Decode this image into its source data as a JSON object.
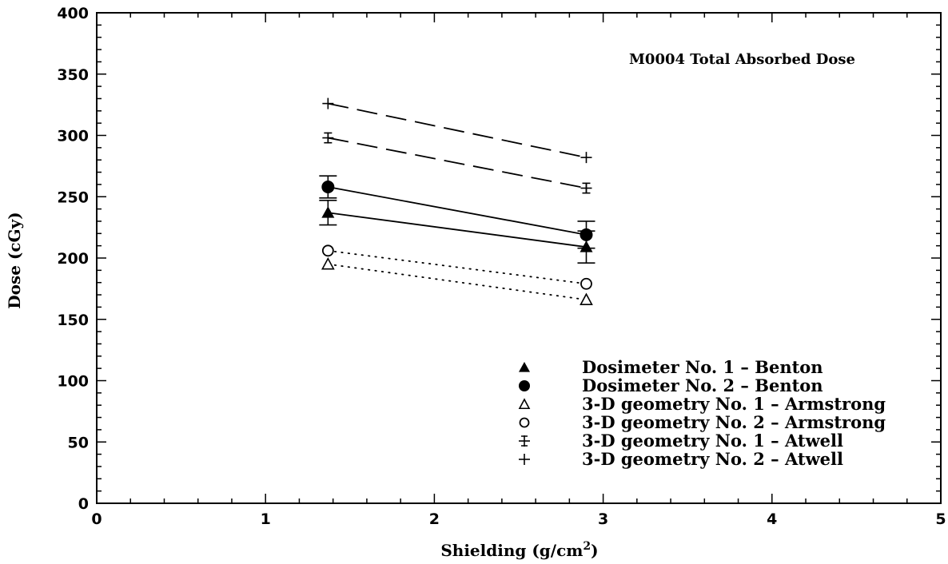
{
  "chart_data": {
    "type": "line",
    "title": "",
    "annotation": "M0004 Total Absorbed Dose",
    "xlabel_main": "Shielding (g/cm",
    "xlabel_sup": "2",
    "xlabel_end": ")",
    "ylabel": "Dose (cGy)",
    "xlim": [
      0,
      5
    ],
    "ylim": [
      0,
      400
    ],
    "xticks": [
      0,
      1,
      2,
      3,
      4,
      5
    ],
    "yticks": [
      0,
      50,
      100,
      150,
      200,
      250,
      300,
      350,
      400
    ],
    "grid": false,
    "legend_position": "lower-right",
    "series": [
      {
        "name": "Dosimeter No. 1 - Benton",
        "marker": "filled-triangle",
        "line": "solid",
        "x": [
          1.37,
          2.9
        ],
        "y": [
          237,
          209
        ],
        "err": [
          10,
          13
        ]
      },
      {
        "name": "Dosimeter No. 2 - Benton",
        "marker": "filled-circle",
        "line": "solid",
        "x": [
          1.37,
          2.9
        ],
        "y": [
          258,
          219
        ],
        "err": [
          9,
          11
        ]
      },
      {
        "name": "3-D geometry No. 1 - Armstrong",
        "marker": "open-triangle",
        "line": "dotted",
        "x": [
          1.37,
          2.9
        ],
        "y": [
          195,
          166
        ],
        "err": [
          0,
          0
        ]
      },
      {
        "name": "3-D geometry No. 2 - Armstrong",
        "marker": "open-circle",
        "line": "dotted",
        "x": [
          1.37,
          2.9
        ],
        "y": [
          206,
          179
        ],
        "err": [
          0,
          0
        ]
      },
      {
        "name": "3-D geometry No. 1 - Atwell",
        "marker": "plus-errbar",
        "line": "dashed",
        "x": [
          1.37,
          2.9
        ],
        "y": [
          298,
          257
        ],
        "err": [
          4,
          4
        ]
      },
      {
        "name": "3-D geometry No. 2 - Atwell",
        "marker": "plus",
        "line": "dashed",
        "x": [
          1.37,
          2.9
        ],
        "y": [
          326,
          282
        ],
        "err": [
          0,
          0
        ]
      }
    ]
  }
}
